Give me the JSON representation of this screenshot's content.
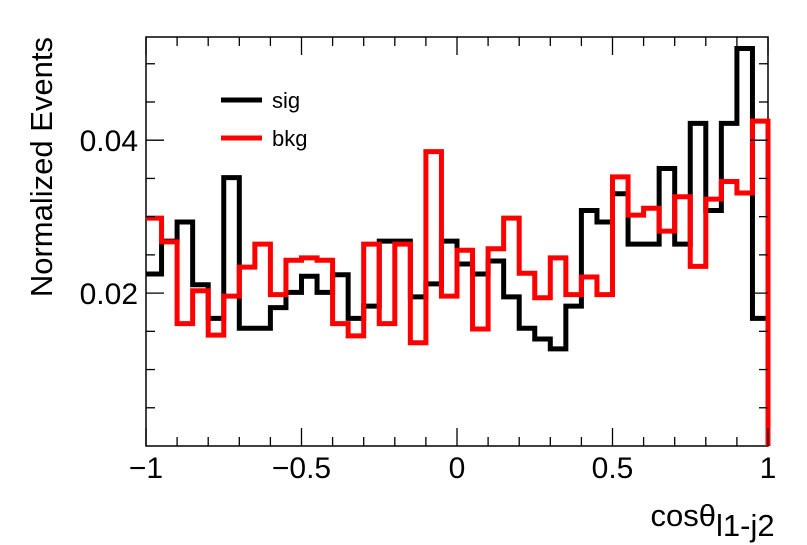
{
  "chart_data": {
    "type": "histogram",
    "xlabel": "cosθ",
    "xlabel_subscript": "l1-j2",
    "ylabel": "Normalized Events",
    "xlim": [
      -1,
      1
    ],
    "ylim": [
      0,
      0.0535
    ],
    "x_ticks": [
      -1,
      -0.5,
      0,
      0.5,
      1
    ],
    "x_tick_labels": [
      "−1",
      "−0.5",
      "0",
      "0.5",
      "1"
    ],
    "y_ticks": [
      0.02,
      0.04
    ],
    "y_tick_labels": [
      "0.02",
      "0.04"
    ],
    "bin_edges_range": [
      -1,
      1
    ],
    "n_bins": 40,
    "legend_position": "top-left",
    "grid": false,
    "series": [
      {
        "name": "sig",
        "color": "#000000",
        "values": [
          0.0225,
          0.0268,
          0.0293,
          0.0211,
          0.0167,
          0.0351,
          0.0154,
          0.0154,
          0.0181,
          0.0201,
          0.0222,
          0.0201,
          0.0224,
          0.0167,
          0.0183,
          0.0268,
          0.0268,
          0.0195,
          0.0212,
          0.0268,
          0.0238,
          0.0225,
          0.0242,
          0.0195,
          0.0154,
          0.014,
          0.0127,
          0.0183,
          0.0308,
          0.0293,
          0.033,
          0.0264,
          0.0264,
          0.0363,
          0.0264,
          0.0422,
          0.0308,
          0.0422,
          0.052,
          0.0167
        ]
      },
      {
        "name": "bkg",
        "color": "#ff0000",
        "values": [
          0.0298,
          0.0267,
          0.016,
          0.0203,
          0.0145,
          0.0196,
          0.0234,
          0.0264,
          0.0198,
          0.0243,
          0.0246,
          0.0243,
          0.016,
          0.0144,
          0.0264,
          0.016,
          0.0264,
          0.0135,
          0.0385,
          0.0196,
          0.0256,
          0.0153,
          0.0258,
          0.0298,
          0.0226,
          0.0194,
          0.0246,
          0.0198,
          0.0221,
          0.0198,
          0.0352,
          0.0302,
          0.0311,
          0.0281,
          0.0326,
          0.0235,
          0.0323,
          0.0346,
          0.0331,
          0.0425
        ]
      }
    ]
  }
}
